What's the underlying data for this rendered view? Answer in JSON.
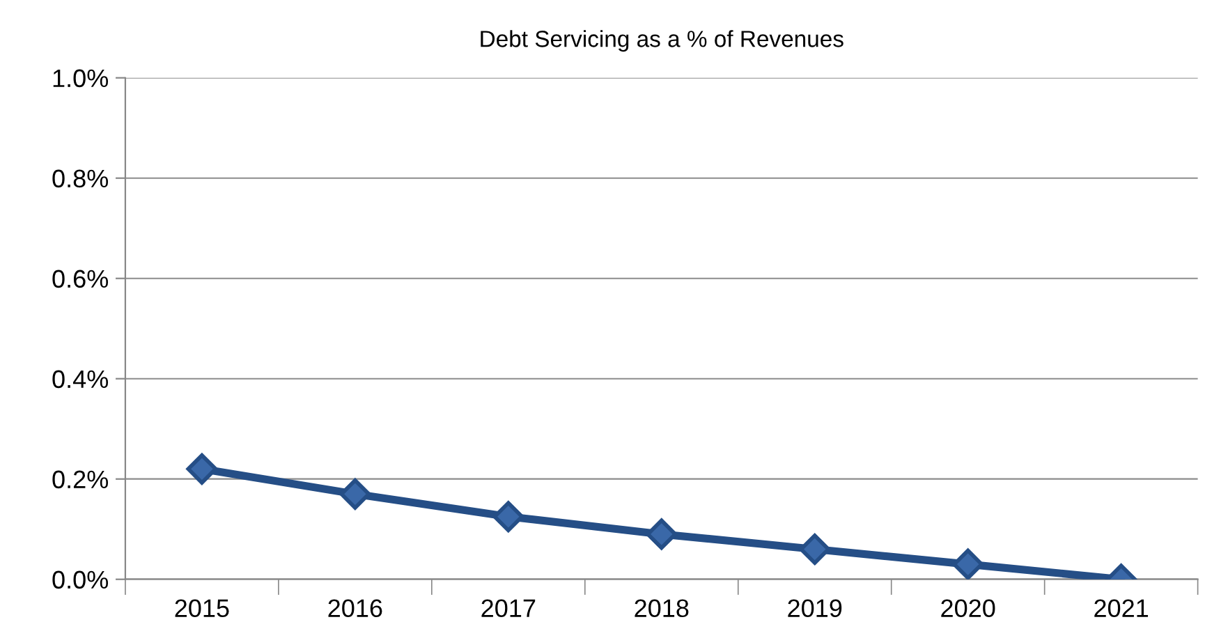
{
  "chart_data": {
    "type": "line",
    "title": "Debt Servicing as a % of Revenues",
    "categories": [
      "2015",
      "2016",
      "2017",
      "2018",
      "2019",
      "2020",
      "2021"
    ],
    "series": [
      {
        "color": "#254e86",
        "values": [
          0.22,
          0.17,
          0.125,
          0.09,
          0.06,
          0.03,
          0.0
        ]
      }
    ],
    "ylim": [
      0,
      1.0
    ],
    "yticks": [
      {
        "value": 0,
        "label": "0.0%"
      },
      {
        "value": 0.2,
        "label": "0.2%"
      },
      {
        "value": 0.4,
        "label": "0.4%"
      },
      {
        "value": 0.6,
        "label": "0.6%"
      },
      {
        "value": 0.8,
        "label": "0.8%"
      },
      {
        "value": 1.0,
        "label": "1.0%"
      }
    ],
    "grid": "y",
    "marker": "diamond",
    "line_style": "solid"
  }
}
